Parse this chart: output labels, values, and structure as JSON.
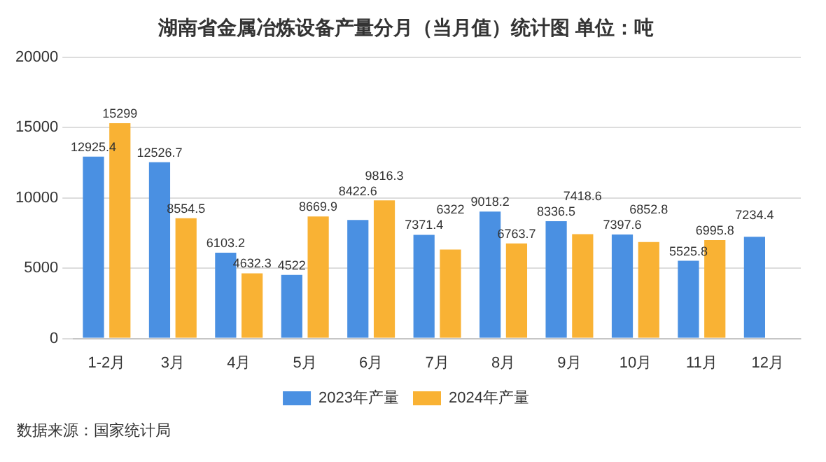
{
  "chart_data": {
    "type": "bar",
    "title": "湖南省金属冶炼设备产量分月（当月值）统计图 单位：吨",
    "categories": [
      "1-2月",
      "3月",
      "4月",
      "5月",
      "6月",
      "7月",
      "8月",
      "9月",
      "10月",
      "11月",
      "12月"
    ],
    "series": [
      {
        "name": "2023年产量",
        "color": "#4a90e2",
        "values": [
          12925.4,
          12526.7,
          6103.2,
          4522,
          8422.6,
          7371.4,
          9018.2,
          8336.5,
          7397.6,
          5525.8,
          7234.4
        ]
      },
      {
        "name": "2024年产量",
        "color": "#f9b234",
        "values": [
          15299,
          8554.5,
          4632.3,
          8669.9,
          9816.3,
          6322,
          6763.7,
          7418.6,
          6852.8,
          6995.8,
          null
        ]
      }
    ],
    "ylim": [
      0,
      20000
    ],
    "yticks": [
      0,
      5000,
      10000,
      15000,
      20000
    ],
    "grid": "y",
    "legend": "bottom",
    "data_labels": true,
    "annotations": [
      "数据来源：国家统计局"
    ]
  }
}
